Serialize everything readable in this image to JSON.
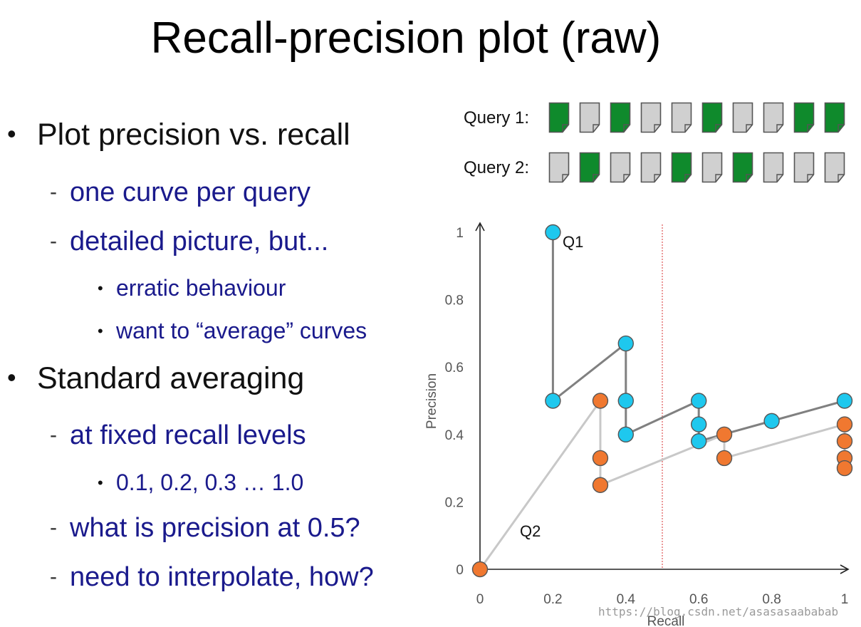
{
  "slide": {
    "title": "Recall-precision plot (raw)",
    "bullets": [
      "Plot precision vs. recall",
      "one curve per query",
      "detailed picture, but...",
      "erratic behaviour",
      "want to “average” curves",
      "Standard averaging",
      "at fixed recall levels",
      "0.1, 0.2, 0.3 … 1.0",
      "what is precision at 0.5?",
      "need to interpolate, how?"
    ]
  },
  "queries": [
    {
      "label": "Query 1:",
      "relevance": [
        1,
        0,
        1,
        0,
        0,
        1,
        0,
        0,
        1,
        1
      ]
    },
    {
      "label": "Query 2:",
      "relevance": [
        0,
        1,
        0,
        0,
        1,
        0,
        1,
        0,
        0,
        0
      ]
    }
  ],
  "colors": {
    "relevant": "#0f8a2c",
    "nonrelevant": "#d0d0d0",
    "q1": "#1ec8ee",
    "q2": "#f07830",
    "q1_line": "#808080",
    "q2_line": "#c8c8c8",
    "refline": "#e06060"
  },
  "chart_data": {
    "type": "line",
    "xlabel": "Recall",
    "ylabel": "Precision",
    "xlim": [
      0,
      1
    ],
    "ylim": [
      0,
      1
    ],
    "xticks": [
      "0",
      "0.2",
      "0.4",
      "0.6",
      "0.8",
      "1"
    ],
    "yticks": [
      "0",
      "0.2",
      "0.4",
      "0.6",
      "0.8",
      "1"
    ],
    "reference_line_x": 0.5,
    "series": [
      {
        "name": "Q1",
        "points": [
          [
            0.2,
            1.0
          ],
          [
            0.2,
            0.5
          ],
          [
            0.4,
            0.67
          ],
          [
            0.4,
            0.5
          ],
          [
            0.4,
            0.4
          ],
          [
            0.6,
            0.5
          ],
          [
            0.6,
            0.43
          ],
          [
            0.6,
            0.38
          ],
          [
            0.8,
            0.44
          ],
          [
            1.0,
            0.5
          ]
        ],
        "line": [
          [
            0.2,
            1.0
          ],
          [
            0.2,
            0.5
          ],
          [
            0.4,
            0.67
          ],
          [
            0.4,
            0.4
          ],
          [
            0.6,
            0.5
          ],
          [
            0.6,
            0.38
          ],
          [
            0.8,
            0.44
          ],
          [
            1.0,
            0.5
          ]
        ]
      },
      {
        "name": "Q2",
        "points": [
          [
            0.0,
            0.0
          ],
          [
            0.33,
            0.5
          ],
          [
            0.33,
            0.33
          ],
          [
            0.33,
            0.25
          ],
          [
            0.67,
            0.4
          ],
          [
            0.67,
            0.33
          ],
          [
            1.0,
            0.43
          ],
          [
            1.0,
            0.38
          ],
          [
            1.0,
            0.33
          ],
          [
            1.0,
            0.3
          ]
        ],
        "line": [
          [
            0.0,
            0.0
          ],
          [
            0.33,
            0.5
          ],
          [
            0.33,
            0.25
          ],
          [
            0.67,
            0.4
          ],
          [
            0.67,
            0.33
          ],
          [
            1.0,
            0.43
          ],
          [
            1.0,
            0.3
          ]
        ]
      }
    ]
  },
  "watermark": "https://blog.csdn.net/asasasaababab"
}
